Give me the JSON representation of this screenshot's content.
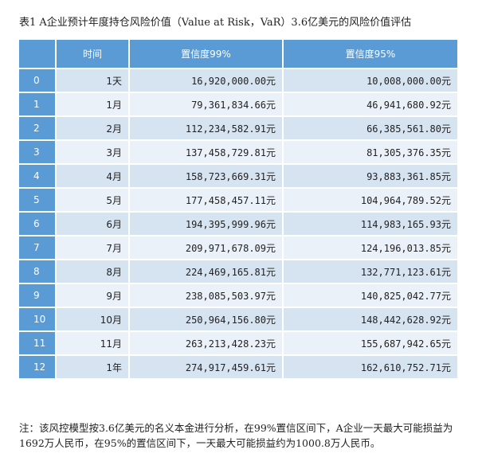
{
  "caption": "表1  A企业预计年度持仓风险价值（Value at Risk，VaR）3.6亿美元的风险价值评估",
  "table": {
    "headers": [
      "",
      "时间",
      "置信度99%",
      "置信度95%"
    ],
    "rows": [
      {
        "idx": "0",
        "time": "1天",
        "v99": "16,920,000.00元",
        "v95": "10,008,000.00元"
      },
      {
        "idx": "1",
        "time": "1月",
        "v99": "79,361,834.66元",
        "v95": "46,941,680.92元"
      },
      {
        "idx": "2",
        "time": "2月",
        "v99": "112,234,582.91元",
        "v95": "66,385,561.80元"
      },
      {
        "idx": "3",
        "time": "3月",
        "v99": "137,458,729.81元",
        "v95": "81,305,376.35元"
      },
      {
        "idx": "4",
        "time": "4月",
        "v99": "158,723,669.31元",
        "v95": "93,883,361.85元"
      },
      {
        "idx": "5",
        "time": "5月",
        "v99": "177,458,457.11元",
        "v95": "104,964,789.52元"
      },
      {
        "idx": "6",
        "time": "6月",
        "v99": "194,395,999.96元",
        "v95": "114,983,165.93元"
      },
      {
        "idx": "7",
        "time": "7月",
        "v99": "209,971,678.09元",
        "v95": "124,196,013.85元"
      },
      {
        "idx": "8",
        "time": "8月",
        "v99": "224,469,165.81元",
        "v95": "132,771,123.61元"
      },
      {
        "idx": "9",
        "time": "9月",
        "v99": "238,085,503.97元",
        "v95": "140,825,042.77元"
      },
      {
        "idx": "10",
        "time": "10月",
        "v99": "250,964,156.80元",
        "v95": "148,442,628.92元"
      },
      {
        "idx": "11",
        "time": "11月",
        "v99": "263,213,428.23元",
        "v95": "155,687,942.65元"
      },
      {
        "idx": "12",
        "time": "1年",
        "v99": "274,917,459.61元",
        "v95": "162,610,752.71元"
      }
    ]
  },
  "note": "注：该风控模型按3.6亿美元的名义本金进行分析，在99%置信区间下，A企业一天最大可能损益为1692万人民币，在95%的置信区间下，一天最大可能损益约为1000.8万人民币。",
  "colors": {
    "header": "#5b9bd5",
    "row_a": "#d6e3f0",
    "row_b": "#ebf1f8"
  }
}
